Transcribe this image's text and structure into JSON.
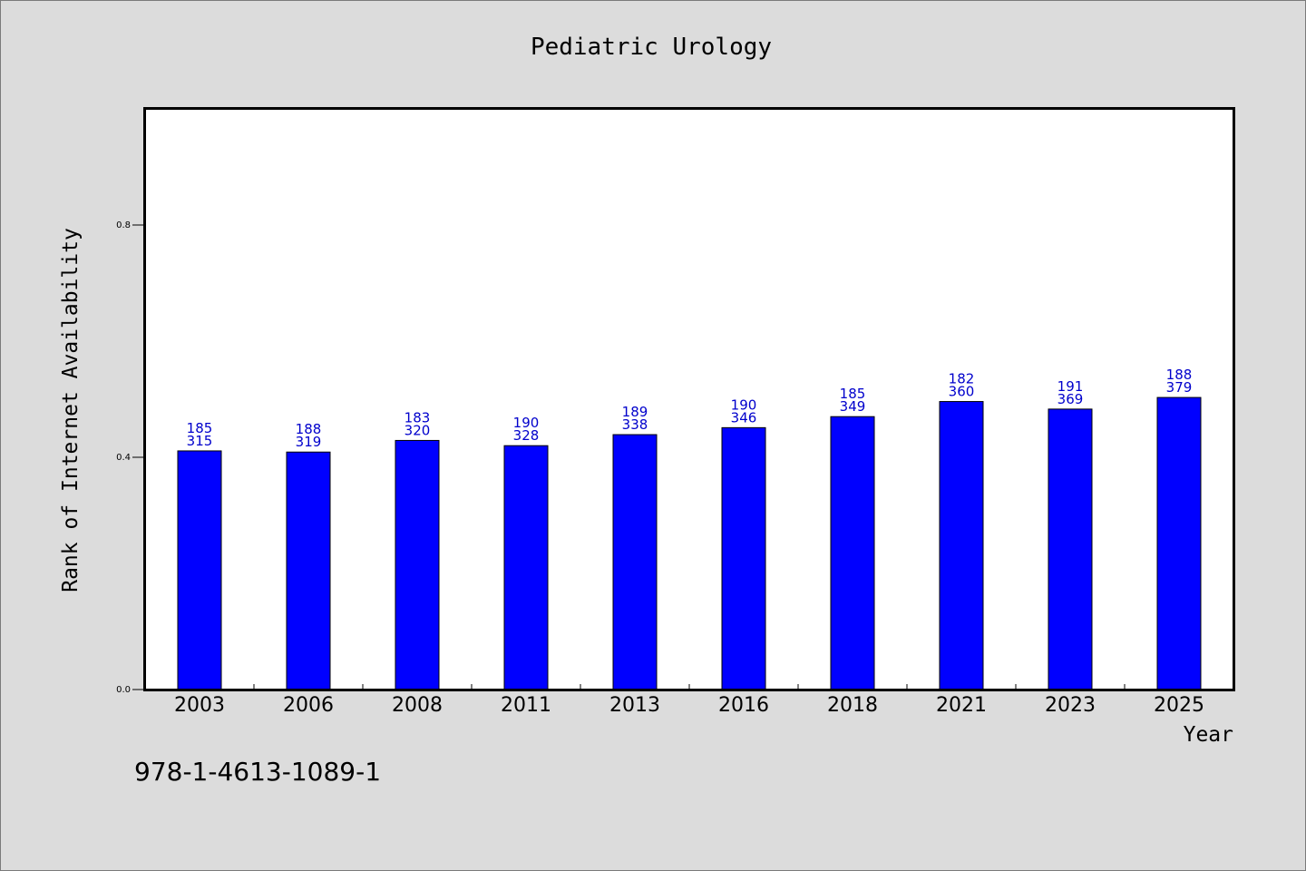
{
  "chart_data": {
    "type": "bar",
    "title": "Pediatric Urology",
    "xlabel": "Year",
    "ylabel": "Rank of Internet Availability",
    "categories": [
      "2003",
      "2006",
      "2008",
      "2011",
      "2013",
      "2016",
      "2018",
      "2021",
      "2023",
      "2025"
    ],
    "values": [
      0.411,
      0.409,
      0.429,
      0.42,
      0.439,
      0.451,
      0.47,
      0.496,
      0.483,
      0.503
    ],
    "labels_top": [
      "185",
      "188",
      "183",
      "190",
      "189",
      "190",
      "185",
      "182",
      "191",
      "188"
    ],
    "labels_bottom": [
      "315",
      "319",
      "320",
      "328",
      "338",
      "346",
      "349",
      "360",
      "369",
      "379"
    ],
    "yticks": [
      "0.0",
      "0.4",
      "0.8"
    ],
    "ylim": [
      0,
      1.0
    ],
    "grid": false,
    "bar_color": "#0000ff",
    "label_color": "#0000cc"
  },
  "footer": {
    "isbn": "978-1-4613-1089-1"
  }
}
